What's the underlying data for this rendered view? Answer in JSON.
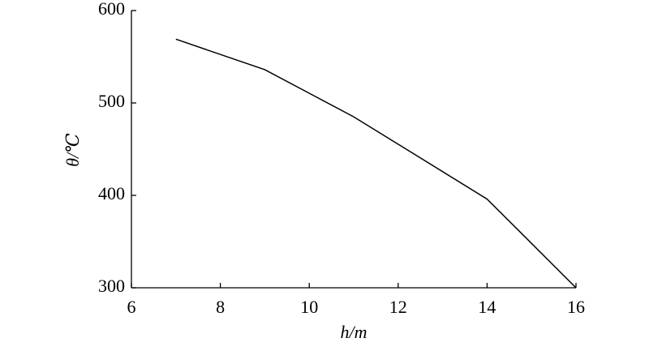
{
  "chart_data": {
    "type": "line",
    "xlabel": "h/m",
    "ylabel": "θ/℃",
    "x": [
      7,
      9,
      11,
      14,
      16
    ],
    "series": [
      {
        "color": "#000000",
        "values": [
          569,
          536,
          485,
          396,
          300
        ]
      }
    ],
    "xlim": [
      6,
      16
    ],
    "xticks": [
      6,
      8,
      10,
      12,
      14,
      16
    ],
    "ylim": [
      300,
      600
    ],
    "yticks": [
      300,
      400,
      500,
      600
    ],
    "grid": false
  }
}
